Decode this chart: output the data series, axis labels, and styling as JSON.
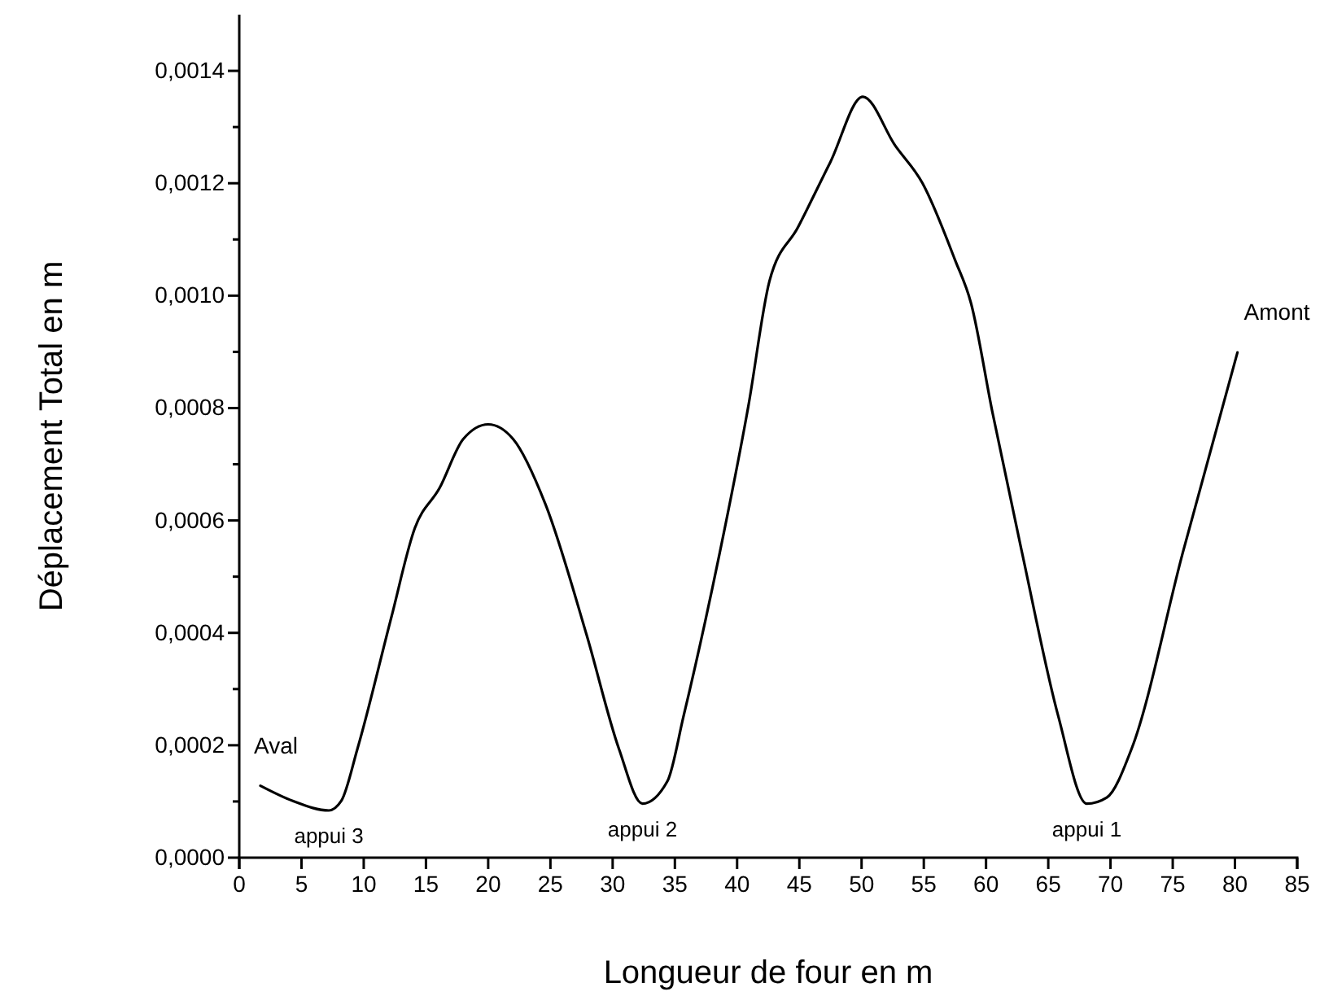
{
  "chart_data": {
    "type": "line",
    "xlabel": "Longueur de four en m",
    "ylabel": "Déplacement Total en m",
    "xlim": [
      0,
      85
    ],
    "xticks": [
      0,
      5,
      10,
      15,
      20,
      25,
      30,
      35,
      40,
      45,
      50,
      55,
      60,
      65,
      70,
      75,
      80,
      85
    ],
    "ylim": [
      0,
      0.0015
    ],
    "yticks": [
      {
        "value": 0,
        "label": "0,0000"
      },
      {
        "value": 0.0001,
        "label": null
      },
      {
        "value": 0.0002,
        "label": "0,0002"
      },
      {
        "value": 0.0003,
        "label": null
      },
      {
        "value": 0.0004,
        "label": "0,0004"
      },
      {
        "value": 0.0005,
        "label": null
      },
      {
        "value": 0.0006,
        "label": "0,0006"
      },
      {
        "value": 0.0007,
        "label": null
      },
      {
        "value": 0.0008,
        "label": "0,0008"
      },
      {
        "value": 0.0009,
        "label": null
      },
      {
        "value": 0.001,
        "label": "0,0010"
      },
      {
        "value": 0.0011,
        "label": null
      },
      {
        "value": 0.0012,
        "label": "0,0012"
      },
      {
        "value": 0.0013,
        "label": null
      },
      {
        "value": 0.0014,
        "label": "0,0014"
      }
    ],
    "grid": false,
    "marker": "none",
    "line_style": "solid",
    "series": [
      {
        "color": "#000000",
        "x": [
          1.7,
          4.3,
          7.2,
          8.2,
          9.5,
          12.2,
          14.1,
          16.1,
          18,
          20,
          22,
          24.6,
          27.9,
          30.5,
          32.4,
          34.4,
          35.7,
          38.6,
          40.9,
          42.6,
          44.9,
          47.5,
          50.1,
          52.7,
          54.9,
          57.5,
          58.8,
          60.5,
          62.9,
          65.8,
          68.1,
          69.7,
          71.7,
          75.8,
          80.2
        ],
        "values": [
          0.000128,
          0.000101,
          8.4e-05,
          0.000101,
          0.000194,
          0.000426,
          0.000586,
          0.000658,
          0.000745,
          0.000771,
          0.000745,
          0.000629,
          0.000397,
          0.000194,
          9.6e-05,
          0.000136,
          0.000252,
          0.000542,
          0.000803,
          0.001026,
          0.001122,
          0.001238,
          0.001354,
          0.001267,
          0.0012,
          0.001064,
          0.000986,
          0.000794,
          0.000542,
          0.000252,
          9.6e-05,
          0.000107,
          0.000194,
          0.000542,
          0.000899
        ]
      }
    ],
    "annotations": [
      {
        "text": "Aval",
        "x": 1.7,
        "y": 0.000128
      },
      {
        "text": "appui 3",
        "x": 7.2,
        "y": 8.4e-05
      },
      {
        "text": "appui 2",
        "x": 32.4,
        "y": 9.6e-05
      },
      {
        "text": "appui 1",
        "x": 68.1,
        "y": 9.6e-05
      },
      {
        "text": "Amont",
        "x": 80.2,
        "y": 0.000899
      }
    ]
  }
}
